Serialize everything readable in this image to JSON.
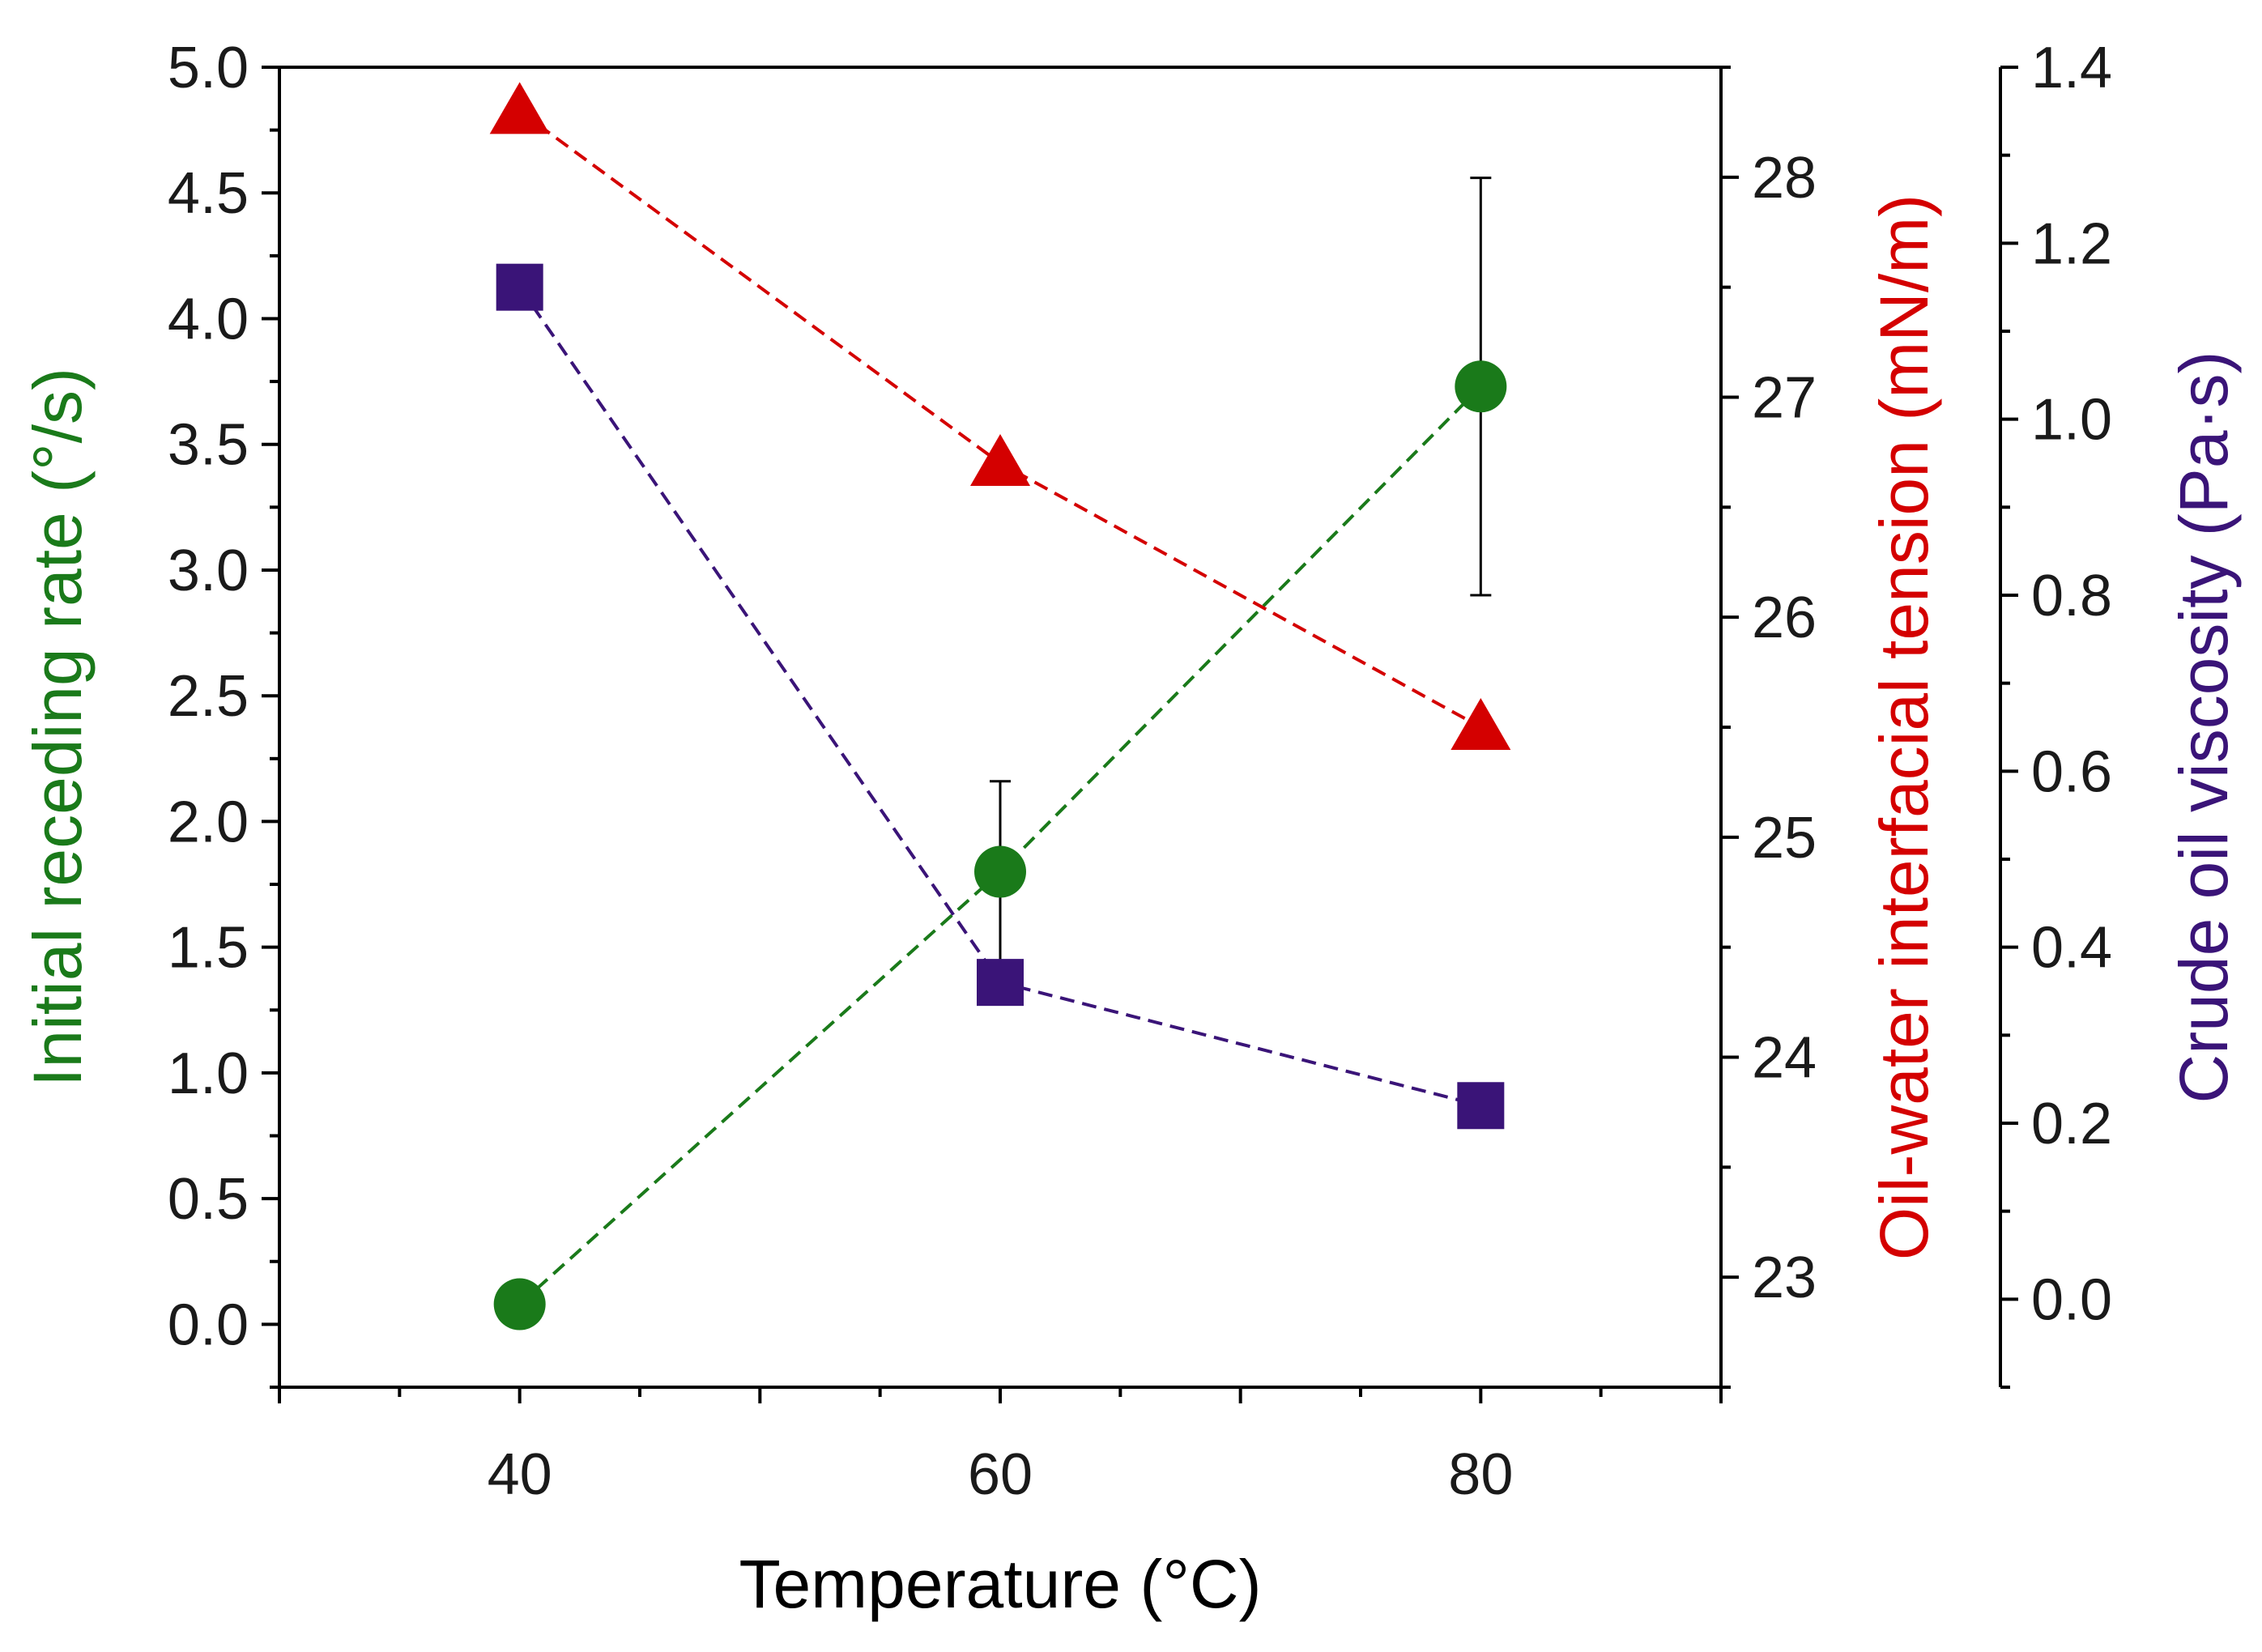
{
  "chart_data": {
    "type": "scatter",
    "x": [
      40,
      60,
      80
    ],
    "xlabel": "Temperature (°C)",
    "xlim": [
      30,
      90
    ],
    "xticks": [
      40,
      60,
      80
    ],
    "axes": {
      "left": {
        "label": "Initial receding rate (°/s)",
        "color": "#1a7a1a",
        "ylim": [
          -0.25,
          5.0
        ],
        "ticks": [
          "0.0",
          "0.5",
          "1.0",
          "1.5",
          "2.0",
          "2.5",
          "3.0",
          "3.5",
          "4.0",
          "4.5",
          "5.0"
        ]
      },
      "right1": {
        "label": "Oil-water interfacial tension (mN/m)",
        "color": "#d40000",
        "ylim": [
          22.5,
          28.5
        ],
        "ticks": [
          "23",
          "24",
          "25",
          "26",
          "27",
          "28"
        ]
      },
      "right2": {
        "label": "Crude oil viscosity (Pa·s)",
        "color": "#3a1478",
        "ylim": [
          -0.1,
          1.4
        ],
        "ticks": [
          "0.0",
          "0.2",
          "0.4",
          "0.6",
          "0.8",
          "1.0",
          "1.2",
          "1.4"
        ]
      }
    },
    "series": [
      {
        "name": "Initial receding rate",
        "axis": "left",
        "marker": "circle",
        "color": "#1a7a1a",
        "values": [
          0.08,
          1.8,
          3.73
        ],
        "errors": [
          0.05,
          0.36,
          0.83
        ]
      },
      {
        "name": "Oil-water interfacial tension",
        "axis": "right1",
        "marker": "triangle",
        "color": "#d40000",
        "values": [
          28.3,
          26.7,
          25.5
        ]
      },
      {
        "name": "Crude oil viscosity",
        "axis": "right2",
        "marker": "square",
        "color": "#3a1478",
        "values": [
          1.15,
          0.36,
          0.22
        ]
      }
    ]
  }
}
